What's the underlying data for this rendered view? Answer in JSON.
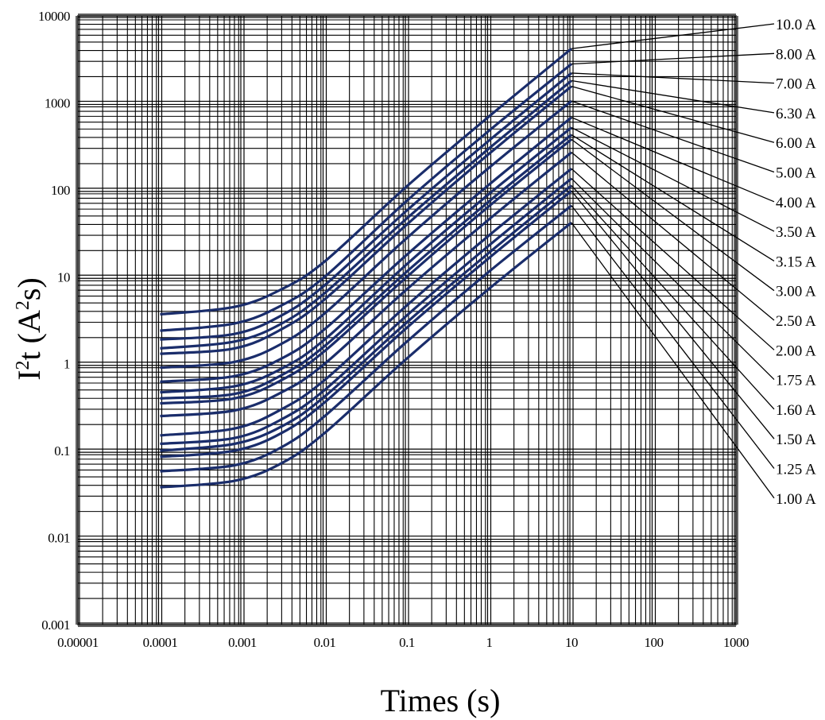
{
  "chart_data": {
    "type": "line",
    "title": "",
    "xlabel": "Times (s)",
    "ylabel_parts": [
      "I",
      "2",
      "t (A",
      "2",
      "s)"
    ],
    "x_scale": "log",
    "y_scale": "log",
    "xlim": [
      1e-05,
      1000
    ],
    "ylim": [
      0.001,
      10000
    ],
    "grid": true,
    "x_ticks": [
      "0.00001",
      "0.0001",
      "0.001",
      "0.01",
      "0.1",
      "1",
      "10",
      "100",
      "1000"
    ],
    "y_ticks": [
      "0.001",
      "0.01",
      "0.1",
      "1",
      "10",
      "100",
      "1000",
      "10000"
    ],
    "x": [
      0.0001,
      0.0008,
      0.003,
      0.01,
      0.1,
      1,
      10
    ],
    "series": [
      {
        "name": "10.0 A",
        "values": [
          3.7,
          4.5,
          7.2,
          15,
          110,
          700,
          4200
        ]
      },
      {
        "name": "8.00 A",
        "values": [
          2.4,
          2.9,
          4.7,
          10,
          75,
          480,
          2800
        ]
      },
      {
        "name": "7.00 A",
        "values": [
          1.9,
          2.2,
          3.6,
          8,
          58,
          370,
          2200
        ]
      },
      {
        "name": "6.30 A",
        "values": [
          1.5,
          1.8,
          2.9,
          6.5,
          47,
          300,
          1800
        ]
      },
      {
        "name": "6.00 A",
        "values": [
          1.3,
          1.5,
          2.5,
          5.5,
          40,
          260,
          1550
        ]
      },
      {
        "name": "5.00 A",
        "values": [
          0.9,
          1.05,
          1.7,
          3.8,
          28,
          180,
          1050
        ]
      },
      {
        "name": "4.00 A",
        "values": [
          0.62,
          0.72,
          1.15,
          2.5,
          18,
          115,
          680
        ]
      },
      {
        "name": "3.50 A",
        "values": [
          0.47,
          0.55,
          0.88,
          1.9,
          14,
          90,
          520
        ]
      },
      {
        "name": "3.15 A",
        "values": [
          0.4,
          0.45,
          0.74,
          1.6,
          11.5,
          74,
          430
        ]
      },
      {
        "name": "3.00 A",
        "values": [
          0.35,
          0.4,
          0.65,
          1.4,
          10,
          65,
          380
        ]
      },
      {
        "name": "2.50 A",
        "values": [
          0.25,
          0.29,
          0.47,
          1.0,
          7.2,
          46,
          270
        ]
      },
      {
        "name": "2.00 A",
        "values": [
          0.15,
          0.18,
          0.3,
          0.65,
          4.7,
          30,
          175
        ]
      },
      {
        "name": "1.75 A",
        "values": [
          0.12,
          0.14,
          0.23,
          0.5,
          3.6,
          23,
          135
        ]
      },
      {
        "name": "1.60 A",
        "values": [
          0.1,
          0.12,
          0.19,
          0.42,
          3.0,
          19,
          112
        ]
      },
      {
        "name": "1.50 A",
        "values": [
          0.085,
          0.1,
          0.16,
          0.36,
          2.6,
          16.5,
          97
        ]
      },
      {
        "name": "1.25 A",
        "values": [
          0.058,
          0.068,
          0.11,
          0.25,
          1.8,
          11.5,
          66
        ]
      },
      {
        "name": "1.00 A",
        "values": [
          0.038,
          0.045,
          0.072,
          0.16,
          1.15,
          7.3,
          42
        ]
      }
    ],
    "colors": {
      "curve": "#1a2d6b",
      "grid": "#000000"
    },
    "legend": "right, labels with leader lines from curve ends"
  }
}
